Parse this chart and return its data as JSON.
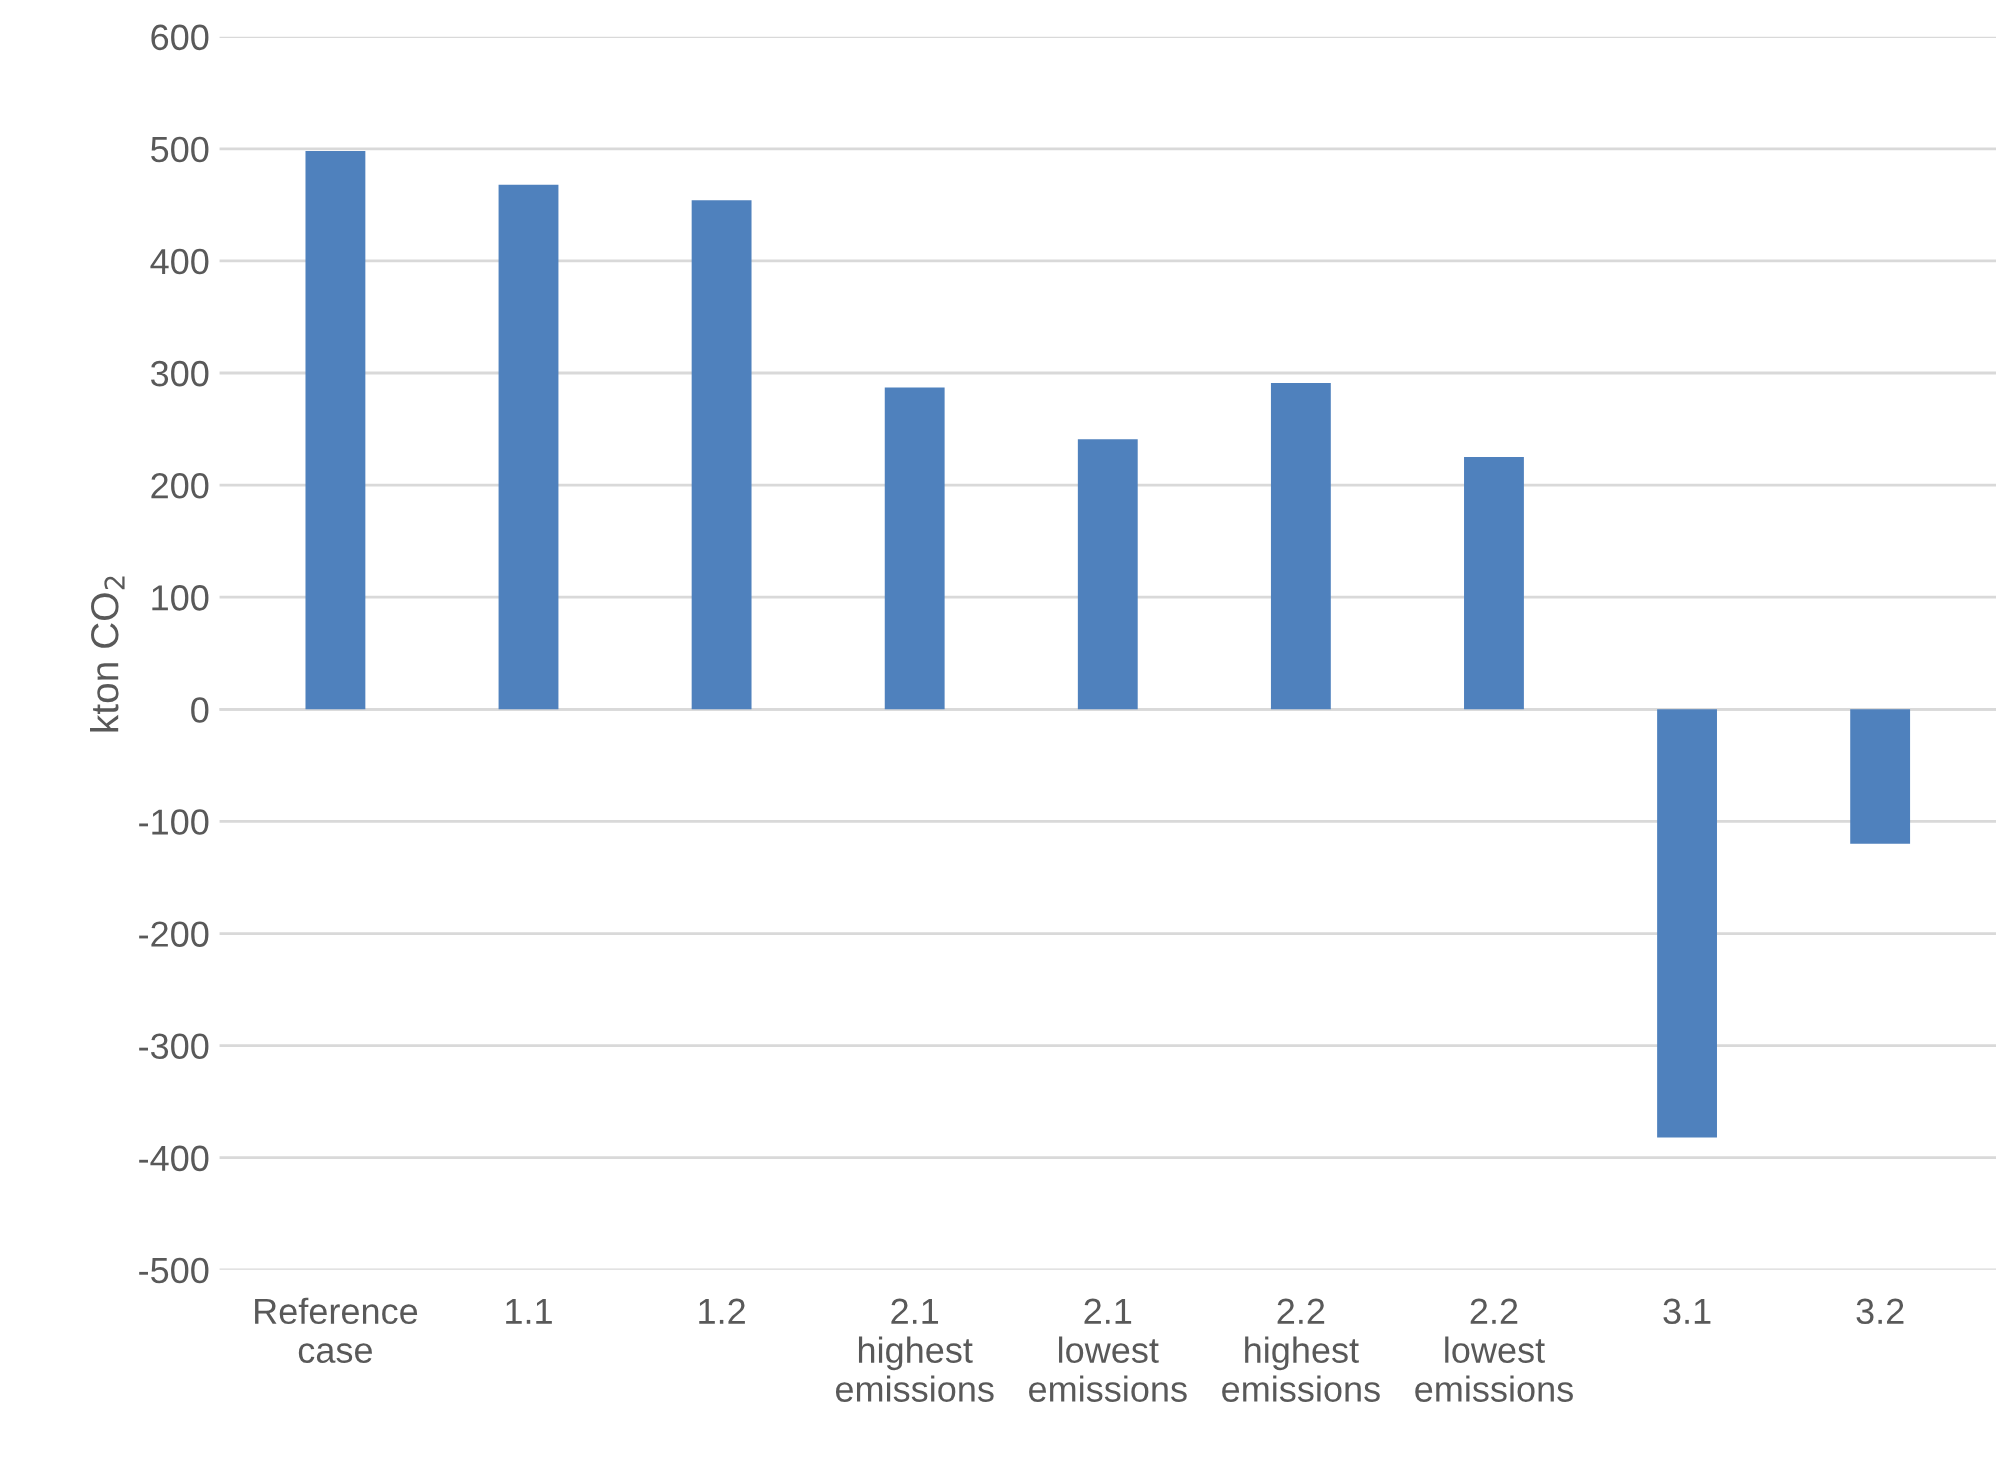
{
  "chart_data": {
    "type": "bar",
    "ylabel": "kton CO$_{2}$",
    "categories": [
      "Reference\ncase",
      "1.1",
      "1.2",
      "2.1\nhighest\nemissions",
      "2.1\nlowest\nemissions",
      "2.2\nhighest\nemissions",
      "2.2\nlowest\nemissions",
      "3.1",
      "3.2"
    ],
    "values": [
      498,
      468,
      454,
      287,
      241,
      291,
      225,
      -382,
      -120
    ],
    "color": "#4f81bd",
    "ylim": [
      -500,
      600
    ],
    "yticks": [
      -500,
      -400,
      -300,
      -200,
      -100,
      0,
      100,
      200,
      300,
      400,
      500,
      600
    ],
    "grid": "y",
    "legend": false
  }
}
